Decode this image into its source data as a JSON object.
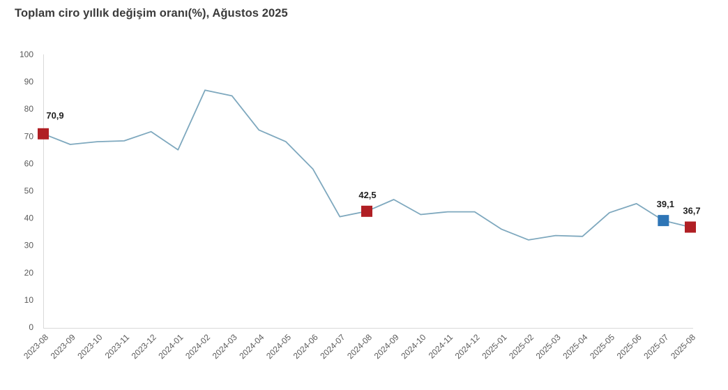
{
  "title": "Toplam ciro yıllık değişim oranı(%), Ağustos 2025",
  "chart_data": {
    "type": "line",
    "title": "Toplam ciro yıllık değişim oranı(%), Ağustos 2025",
    "xlabel": "",
    "ylabel": "",
    "ylim": [
      0,
      100
    ],
    "ytick_step": 10,
    "grid": false,
    "legend": "none",
    "x": [
      "2023-08",
      "2023-09",
      "2023-10",
      "2023-11",
      "2023-12",
      "2024-01",
      "2024-02",
      "2024-03",
      "2024-04",
      "2024-05",
      "2024-06",
      "2024-07",
      "2024-08",
      "2024-09",
      "2024-10",
      "2024-11",
      "2024-12",
      "2025-01",
      "2025-02",
      "2025-03",
      "2025-04",
      "2025-05",
      "2025-06",
      "2025-07",
      "2025-08"
    ],
    "series": [
      {
        "name": "Toplam ciro yıllık değişim oranı (%)",
        "color": "#7ea8be",
        "values": [
          70.9,
          67.0,
          68.0,
          68.3,
          71.7,
          65.0,
          86.9,
          84.8,
          72.3,
          68.0,
          58.0,
          40.5,
          42.5,
          46.8,
          41.3,
          42.3,
          42.3,
          35.9,
          32.0,
          33.6,
          33.3,
          42.0,
          45.3,
          39.1,
          36.7
        ]
      }
    ],
    "annotations": [
      {
        "x": "2023-08",
        "value": 70.9,
        "label": "70,9",
        "marker": "square",
        "marker_color": "#b01f24"
      },
      {
        "x": "2024-08",
        "value": 42.5,
        "label": "42,5",
        "marker": "square",
        "marker_color": "#b01f24"
      },
      {
        "x": "2025-07",
        "value": 39.1,
        "label": "39,1",
        "marker": "square",
        "marker_color": "#2e75b6"
      },
      {
        "x": "2025-08",
        "value": 36.7,
        "label": "36,7",
        "marker": "square",
        "marker_color": "#b01f24"
      }
    ]
  },
  "colors": {
    "line": "#7ea8be",
    "marker_red": "#b01f24",
    "marker_blue": "#2e75b6",
    "axis": "#d9d9d9",
    "tick_label": "#595959",
    "data_label": "#1f1f1f",
    "title": "#3a3a3a",
    "background": "#ffffff"
  }
}
